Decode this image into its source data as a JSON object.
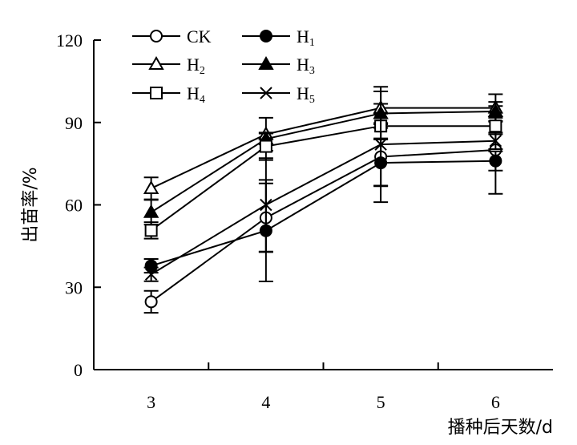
{
  "chart_data": {
    "type": "line",
    "title": "",
    "xlabel": "播种后天数/d",
    "ylabel": "出苗率/%",
    "x": [
      3,
      4,
      5,
      6
    ],
    "xlim": [
      2.5,
      6.5
    ],
    "ylim": [
      0,
      120
    ],
    "yticks": [
      0,
      30,
      60,
      90,
      120
    ],
    "xticks": [
      3,
      4,
      5,
      6
    ],
    "grid": false,
    "legend_position": "top-left",
    "series": [
      {
        "name": "CK",
        "sub": "",
        "marker": "circle-open",
        "values": [
          24.7,
          55.3,
          77.5,
          80.0
        ],
        "errors": [
          4.0,
          12.5,
          10.5,
          16.0
        ]
      },
      {
        "name": "H",
        "sub": "1",
        "marker": "circle-filled",
        "values": [
          37.8,
          50.6,
          75.3,
          76.0
        ],
        "errors": [
          2.5,
          18.5,
          8.5,
          3.5
        ]
      },
      {
        "name": "H",
        "sub": "2",
        "marker": "triangle-open",
        "values": [
          66.0,
          85.7,
          95.3,
          95.3
        ],
        "errors": [
          4.0,
          6.0,
          6.0,
          5.0
        ]
      },
      {
        "name": "H",
        "sub": "3",
        "marker": "triangle-filled",
        "values": [
          57.3,
          84.0,
          93.3,
          94.0
        ],
        "errors": [
          4.5,
          2.0,
          3.5,
          3.5
        ]
      },
      {
        "name": "H",
        "sub": "4",
        "marker": "square-open",
        "values": [
          50.7,
          81.3,
          88.7,
          88.7
        ],
        "errors": [
          3.0,
          5.0,
          4.5,
          3.0
        ]
      },
      {
        "name": "H",
        "sub": "5",
        "marker": "x",
        "values": [
          34.7,
          60.0,
          82.0,
          83.3
        ],
        "errors": [
          2.5,
          17.0,
          21.0,
          3.0
        ]
      }
    ]
  }
}
